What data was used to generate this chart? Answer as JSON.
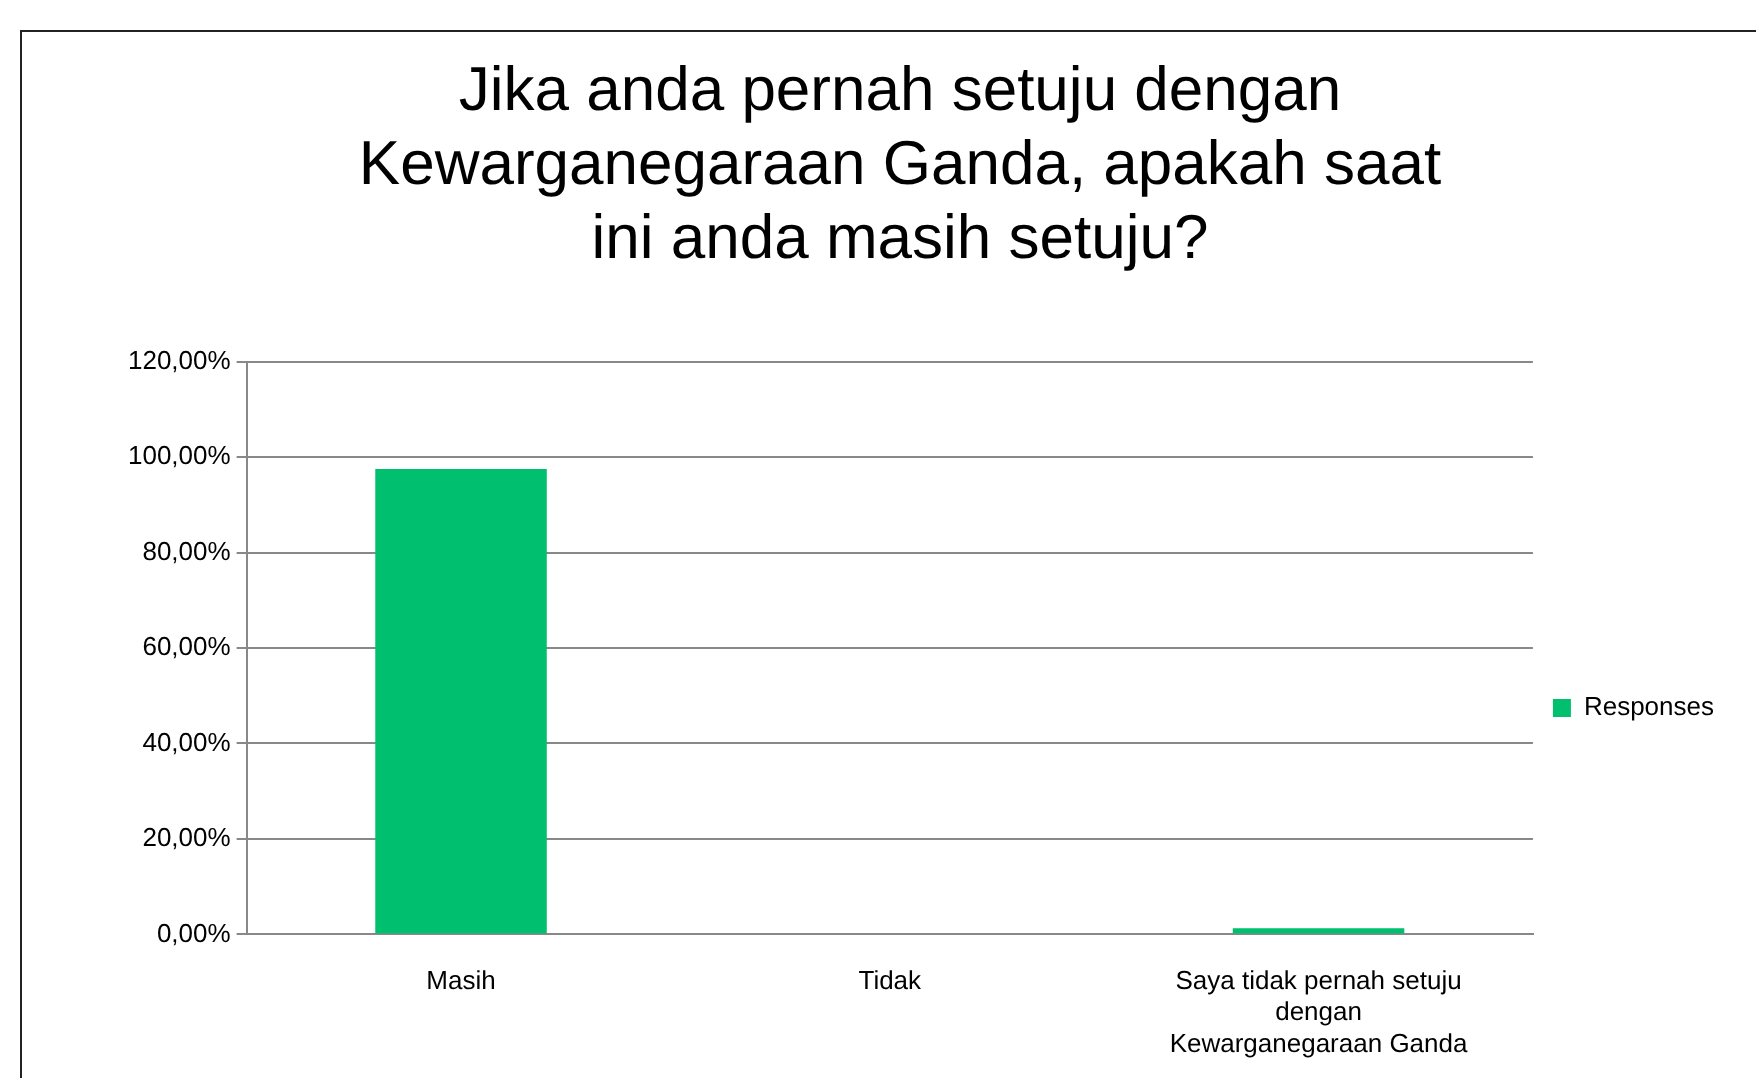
{
  "chart_data": {
    "type": "bar",
    "title": "Jika anda pernah setuju dengan Kewarganegaraan Ganda, apakah saat ini anda masih setuju?",
    "categories": [
      "Masih",
      "Tidak",
      "Saya tidak pernah setuju dengan Kewarganegaraan Ganda"
    ],
    "series": [
      {
        "name": "Responses",
        "color": "#00bf6f",
        "values": [
          97.5,
          0,
          1.3
        ]
      }
    ],
    "ylim": [
      0,
      120
    ],
    "yticks": [
      {
        "value": 0,
        "label": "0,00%"
      },
      {
        "value": 20,
        "label": "20,00%"
      },
      {
        "value": 40,
        "label": "40,00%"
      },
      {
        "value": 60,
        "label": "60,00%"
      },
      {
        "value": 80,
        "label": "80,00%"
      },
      {
        "value": 100,
        "label": "100,00%"
      },
      {
        "value": 120,
        "label": "120,00%"
      }
    ],
    "grid": "y",
    "legend": "right"
  }
}
